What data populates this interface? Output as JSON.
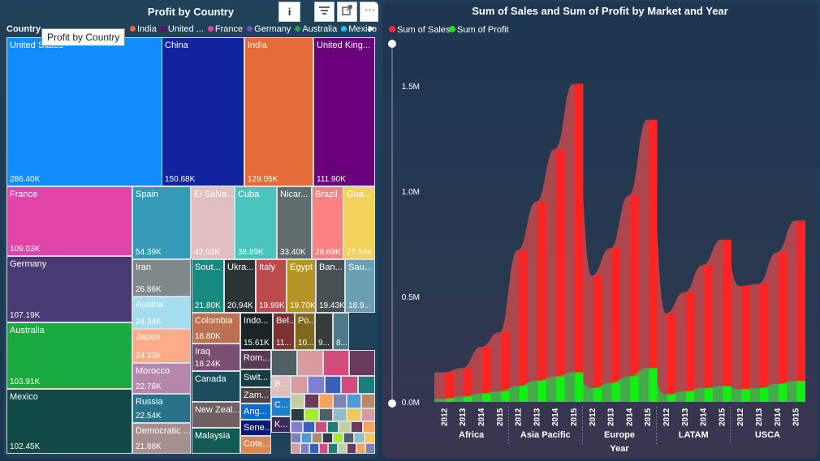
{
  "chart_data": [
    {
      "type": "treemap",
      "title": "Profit by Country",
      "legend": {
        "title": "Country",
        "entries": [
          {
            "name": "India",
            "color": "#e66c37"
          },
          {
            "name": "United ...",
            "color": "#6b007b"
          },
          {
            "name": "France",
            "color": "#e044a7"
          },
          {
            "name": "Germany",
            "color": "#744ec2"
          },
          {
            "name": "Australia",
            "color": "#1aab40"
          },
          {
            "name": "Mexico",
            "color": "#15c6f4"
          }
        ],
        "placement": "top-left"
      },
      "tooltip": "Profit by Country",
      "items": [
        {
          "name": "United States",
          "value": 286.4,
          "label": "286.40K",
          "color": "#118dff"
        },
        {
          "name": "China",
          "value": 150.68,
          "label": "150.68K",
          "color": "#12239e"
        },
        {
          "name": "India",
          "value": 129.05,
          "label": "129.05K",
          "color": "#e66c37"
        },
        {
          "name": "United King...",
          "value": 111.9,
          "label": "111.90K",
          "color": "#6b007b"
        },
        {
          "name": "France",
          "value": 109.03,
          "label": "109.03K",
          "color": "#e044a7"
        },
        {
          "name": "Germany",
          "value": 107.19,
          "label": "107.19K",
          "color": "#4a3a74"
        },
        {
          "name": "Australia",
          "value": 103.91,
          "label": "103.91K",
          "color": "#1aab40"
        },
        {
          "name": "Mexico",
          "value": 102.45,
          "label": "102.45K",
          "color": "#0f4a44"
        },
        {
          "name": "Spain",
          "value": 54.39,
          "label": "54.39K",
          "color": "#3599b8"
        },
        {
          "name": "El Salva...",
          "value": 42.02,
          "label": "42.02K",
          "color": "#dfbfbf"
        },
        {
          "name": "Cuba",
          "value": 38.89,
          "label": "38.89K",
          "color": "#4ac5bb"
        },
        {
          "name": "Nicar...",
          "value": 33.4,
          "label": "33.40K",
          "color": "#5f6b6d"
        },
        {
          "name": "Brazil",
          "value": 29.69,
          "label": "29.69K",
          "color": "#fb8281"
        },
        {
          "name": "Gua...",
          "value": 27.94,
          "label": "27.94K",
          "color": "#f4d25a"
        },
        {
          "name": "Iran",
          "value": 26.86,
          "label": "26.86K",
          "color": "#7f898a"
        },
        {
          "name": "Austria",
          "value": 24.34,
          "label": "24.34K",
          "color": "#a4ddee"
        },
        {
          "name": "Japan",
          "value": 24.33,
          "label": "24.33K",
          "color": "#fdab89"
        },
        {
          "name": "Morocco",
          "value": 22.76,
          "label": "22.76K",
          "color": "#b687ac"
        },
        {
          "name": "Russia",
          "value": 22.54,
          "label": "22.54K",
          "color": "#28738a"
        },
        {
          "name": "Democratic ...",
          "value": 21.86,
          "label": "21.86K",
          "color": "#a78f8f"
        },
        {
          "name": "Sout...",
          "value": 21.8,
          "label": "21.80K",
          "color": "#168980"
        },
        {
          "name": "Ukra...",
          "value": 20.94,
          "label": "20.94K",
          "color": "#293537"
        },
        {
          "name": "Italy",
          "value": 19.99,
          "label": "19.99K",
          "color": "#bb4a4a"
        },
        {
          "name": "Egypt",
          "value": 19.7,
          "label": "19.70K",
          "color": "#b59525"
        },
        {
          "name": "Ban...",
          "value": 19.43,
          "label": "19.43K",
          "color": "#475052"
        },
        {
          "name": "Sau...",
          "value": 18.9,
          "label": "18.9...",
          "color": "#6a9fb0"
        },
        {
          "name": "Colombia",
          "value": 18.8,
          "label": "18.80K",
          "color": "#bd7150"
        },
        {
          "name": "Iraq",
          "value": 18.24,
          "label": "18.24K",
          "color": "#7b4f71"
        },
        {
          "name": "Canada",
          "value": 17.8,
          "label": "",
          "color": "#1b4d5c"
        },
        {
          "name": "New Zeal...",
          "value": 17.3,
          "label": "",
          "color": "#706060"
        },
        {
          "name": "Malaysia",
          "value": 16.9,
          "label": "",
          "color": "#0f5c55"
        },
        {
          "name": "Indo...",
          "value": 15.61,
          "label": "15.61K",
          "color": "#1c2325"
        },
        {
          "name": "Bel...",
          "value": 11.5,
          "label": "11...",
          "color": "#7d3231"
        },
        {
          "name": "Po...",
          "value": 10.5,
          "label": "10...",
          "color": "#7d6a1f"
        },
        {
          "name": "",
          "value": 9.5,
          "label": "9...",
          "color": "#363b3c"
        },
        {
          "name": "",
          "value": 8.5,
          "label": "8...",
          "color": "#4e7b89"
        },
        {
          "name": "Rom...",
          "value": 8.0,
          "label": "",
          "color": "#573b50"
        },
        {
          "name": "Swit...",
          "value": 7.6,
          "label": "",
          "color": "#123d42"
        },
        {
          "name": "Zam...",
          "value": 7.2,
          "label": "",
          "color": "#4f4545"
        },
        {
          "name": "Ang...",
          "value": 6.8,
          "label": "",
          "color": "#0b6dcc"
        },
        {
          "name": "Sene...",
          "value": 6.4,
          "label": "",
          "color": "#0d1970"
        },
        {
          "name": "Cote...",
          "value": 6.0,
          "label": "",
          "color": "#d9894f"
        },
        {
          "name": "B...",
          "value": 5.6,
          "label": "",
          "color": "#dfbfbf"
        },
        {
          "name": "C...",
          "value": 5.2,
          "label": "",
          "color": "#1f81c9"
        },
        {
          "name": "K...",
          "value": 4.8,
          "label": "",
          "color": "#3a2a57"
        }
      ]
    },
    {
      "type": "area",
      "title": "Sum of Sales and Sum of Profit by Market and Year",
      "xlabel": "Year",
      "ylabel": "",
      "ylim": [
        0,
        1600000
      ],
      "yticks": [
        {
          "v": 0,
          "label": "0.0M"
        },
        {
          "v": 500000,
          "label": "0.5M"
        },
        {
          "v": 1000000,
          "label": "1.0M"
        },
        {
          "v": 1500000,
          "label": "1.5M"
        }
      ],
      "legend_placement": "top-left",
      "categories": [
        "Africa",
        "Asia Pacific",
        "Europe",
        "LATAM",
        "USCA"
      ],
      "x": [
        "2012",
        "2013",
        "2014",
        "2015",
        "2012",
        "2013",
        "2014",
        "2015",
        "2012",
        "2013",
        "2014",
        "2015",
        "2012",
        "2013",
        "2014",
        "2015",
        "2012",
        "2013",
        "2014",
        "2015"
      ],
      "series": [
        {
          "name": "Sum of Sales",
          "color": "#ff2a2a",
          "values": [
            140000,
            160000,
            260000,
            330000,
            720000,
            950000,
            1200000,
            1510000,
            600000,
            730000,
            980000,
            1340000,
            420000,
            520000,
            650000,
            770000,
            550000,
            560000,
            710000,
            860000
          ]
        },
        {
          "name": "Sum of Profit",
          "color": "#19e619",
          "values": [
            15000,
            25000,
            40000,
            50000,
            75000,
            100000,
            120000,
            140000,
            65000,
            90000,
            120000,
            160000,
            35000,
            50000,
            65000,
            75000,
            60000,
            65000,
            85000,
            100000
          ]
        }
      ]
    }
  ]
}
